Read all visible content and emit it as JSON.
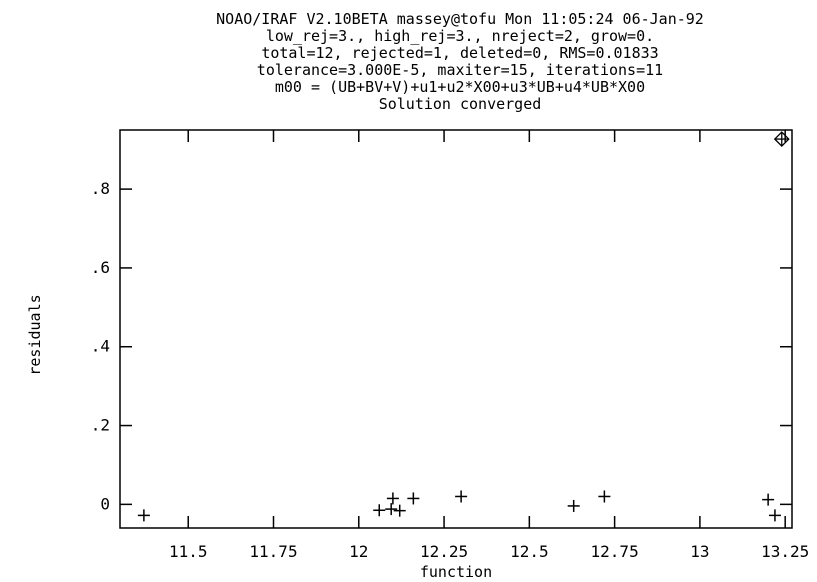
{
  "chart_data": {
    "type": "scatter",
    "title_lines": [
      "NOAO/IRAF V2.10BETA massey@tofu Mon 11:05:24 06-Jan-92",
      "low_rej=3., high_rej=3., nreject=2, grow=0.",
      "total=12, rejected=1, deleted=0, RMS=0.01833",
      "tolerance=3.000E-5, maxiter=15, iterations=11",
      "m00 = (UB+BV+V)+u1+u2*X00+u3*UB+u4*UB*X00",
      "Solution converged"
    ],
    "xlabel": "function",
    "ylabel": "residuals",
    "xlim": [
      11.3,
      13.27
    ],
    "ylim": [
      -0.06,
      0.95
    ],
    "x_ticks": [
      11.5,
      11.75,
      12,
      12.25,
      12.5,
      12.75,
      13,
      13.25
    ],
    "x_tick_labels": [
      "11.5",
      "11.75",
      "12",
      "12.25",
      "12.5",
      "12.75",
      "13",
      "13.25"
    ],
    "y_ticks": [
      0,
      0.2,
      0.4,
      0.6,
      0.8
    ],
    "y_tick_labels": [
      "0",
      ".2",
      ".4",
      ".6",
      ".8"
    ],
    "grid": false,
    "points": [
      {
        "x": 11.37,
        "y": -0.028,
        "marker": "plus"
      },
      {
        "x": 12.06,
        "y": -0.015,
        "marker": "plus"
      },
      {
        "x": 12.095,
        "y": -0.012,
        "marker": "plus"
      },
      {
        "x": 12.1,
        "y": 0.015,
        "marker": "plus"
      },
      {
        "x": 12.12,
        "y": -0.016,
        "marker": "plus"
      },
      {
        "x": 12.16,
        "y": 0.015,
        "marker": "plus"
      },
      {
        "x": 12.3,
        "y": 0.02,
        "marker": "plus"
      },
      {
        "x": 12.63,
        "y": -0.004,
        "marker": "plus"
      },
      {
        "x": 12.72,
        "y": 0.02,
        "marker": "plus"
      },
      {
        "x": 13.2,
        "y": 0.012,
        "marker": "plus"
      },
      {
        "x": 13.22,
        "y": -0.028,
        "marker": "plus"
      },
      {
        "x": 13.24,
        "y": 0.927,
        "marker": "rejected-diamond"
      }
    ],
    "colors": {
      "foreground": "#000000",
      "background": "#ffffff"
    }
  }
}
